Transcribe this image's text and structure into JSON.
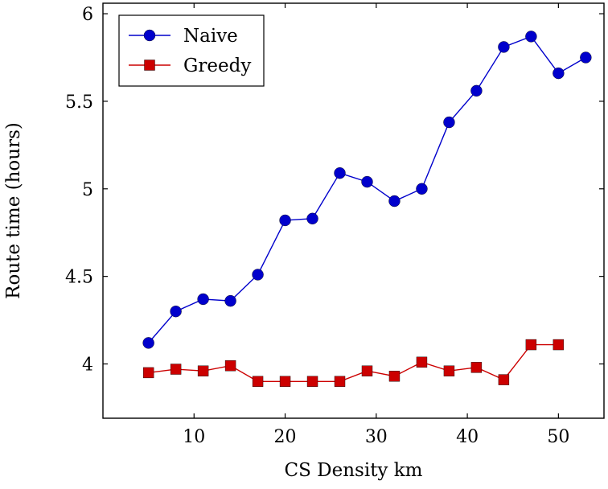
{
  "chart_data": {
    "type": "line",
    "title": "",
    "xlabel": "CS Density km",
    "ylabel": "Route time (hours)",
    "xlim": [
      0,
      55
    ],
    "ylim": [
      3.69,
      6.06
    ],
    "xticks": [
      10,
      20,
      30,
      40,
      50
    ],
    "yticks": [
      4,
      4.5,
      5,
      5.5,
      6
    ],
    "grid": false,
    "legend_position": "top-left",
    "series": [
      {
        "name": "Naive",
        "color": "#0000cc",
        "marker": "circle",
        "x": [
          5,
          8,
          11,
          14,
          17,
          20,
          23,
          26,
          29,
          32,
          35,
          38,
          41,
          44,
          47,
          50,
          53
        ],
        "y": [
          4.12,
          4.3,
          4.37,
          4.36,
          4.51,
          4.82,
          4.83,
          5.09,
          5.04,
          4.93,
          5.0,
          5.38,
          5.56,
          5.81,
          5.87,
          5.66,
          5.75
        ]
      },
      {
        "name": "Greedy",
        "color": "#cc0000",
        "marker": "square",
        "x": [
          5,
          8,
          11,
          14,
          17,
          20,
          23,
          26,
          29,
          32,
          35,
          38,
          41,
          44,
          47,
          50
        ],
        "y": [
          3.95,
          3.97,
          3.96,
          3.99,
          3.9,
          3.9,
          3.9,
          3.9,
          3.96,
          3.93,
          4.01,
          3.96,
          3.98,
          3.91,
          4.11,
          4.11
        ]
      }
    ]
  }
}
